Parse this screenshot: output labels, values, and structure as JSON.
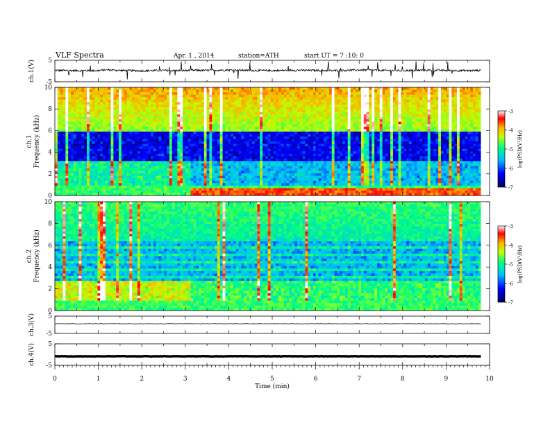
{
  "header": {
    "title": "VLF Spectra",
    "date": "Apr. 1 , 2014",
    "station": "station=ATH",
    "start": "start UT = 7 :10: 0"
  },
  "chart_data": [
    {
      "type": "line",
      "panel": "ch1-waveform",
      "ylabel": "ch.1(V)",
      "ylim": [
        -5,
        5
      ],
      "yticks": [
        "5",
        "-5"
      ],
      "xlim": [
        0,
        10
      ],
      "x": [
        0,
        0.5,
        1,
        1.2,
        1.5,
        2,
        2.5,
        3,
        3.1,
        3.5,
        4,
        4.5,
        5,
        5.5,
        6,
        6.5,
        7,
        7.5,
        8,
        8.5,
        9,
        9.5,
        9.8
      ],
      "y": [
        0.3,
        0.2,
        0.2,
        0.6,
        0.3,
        0.1,
        0.3,
        0.2,
        0.4,
        0.3,
        0.5,
        0.3,
        0.2,
        0.4,
        0.3,
        0.2,
        0.5,
        0.3,
        0.2,
        0.4,
        0.3,
        0.2,
        0.3
      ],
      "color": "#000000"
    },
    {
      "type": "heatmap",
      "panel": "ch1-spectrogram",
      "ylabel_top": "ch.1",
      "ylabel": "Frequency (kHz)",
      "ylim": [
        0,
        10
      ],
      "yticks": [
        "0",
        "2",
        "4",
        "6",
        "8",
        "10"
      ],
      "xlim": [
        0,
        10
      ],
      "colorbar": {
        "label": "log(PSD(V²/Hz)",
        "ticks": [
          "-3",
          "-4",
          "-5",
          "-6",
          "-7"
        ],
        "range": [
          -7,
          -3
        ]
      }
    },
    {
      "type": "heatmap",
      "panel": "ch2-spectrogram",
      "ylabel_top": "ch.2",
      "ylabel": "Frequency (kHz)",
      "ylim": [
        0,
        10
      ],
      "yticks": [
        "0",
        "2",
        "4",
        "6",
        "8",
        "10"
      ],
      "xlim": [
        0,
        10
      ],
      "colorbar": {
        "label": "log(PSD(V²/Hz)",
        "ticks": [
          "-3",
          "-4",
          "-5",
          "-6",
          "-7"
        ],
        "range": [
          -7,
          -3
        ]
      }
    },
    {
      "type": "line",
      "panel": "ch3-waveform",
      "ylabel": "ch.3(V)",
      "ylim": [
        -5,
        5
      ],
      "yticks": [
        "5",
        "-5"
      ],
      "xlim": [
        0,
        10
      ],
      "x": [
        0,
        9.8
      ],
      "y": [
        0.6,
        0.6
      ],
      "color": "#000000"
    },
    {
      "type": "line",
      "panel": "ch4-waveform",
      "ylabel": "ch.4(V)",
      "ylim": [
        -5,
        5
      ],
      "yticks": [
        "5",
        "-5"
      ],
      "xlim": [
        0,
        10
      ],
      "x": [
        0,
        9.8
      ],
      "y": [
        -0.8,
        -0.8
      ],
      "color": "#000000"
    }
  ],
  "x_axis": {
    "label": "Time (min)",
    "ticks": [
      "0",
      "1",
      "2",
      "3",
      "4",
      "5",
      "6",
      "7",
      "8",
      "9",
      "10"
    ]
  }
}
